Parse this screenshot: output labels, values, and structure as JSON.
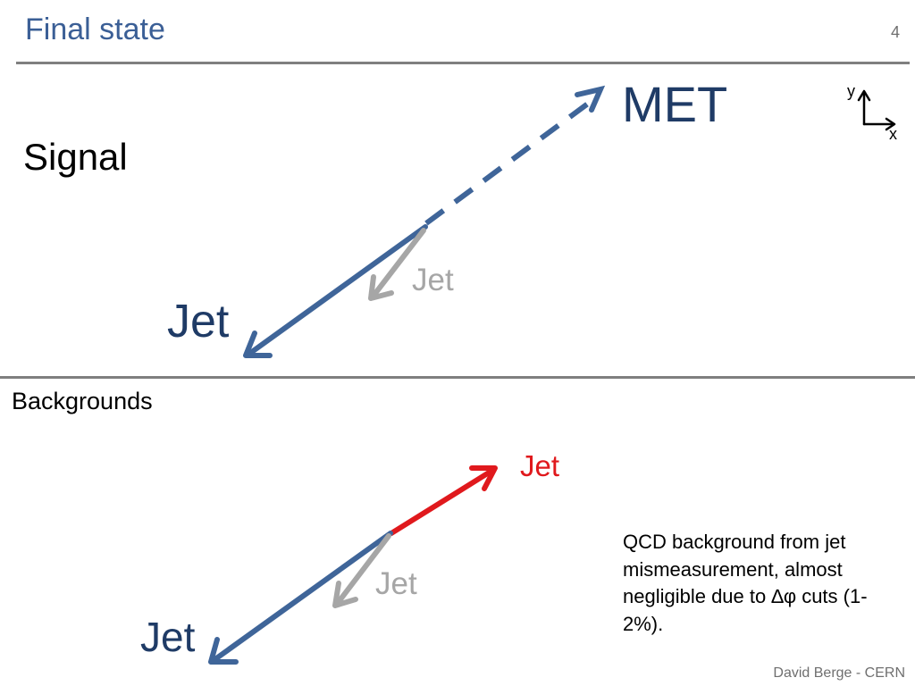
{
  "header": {
    "title": "Final state",
    "page_number": "4"
  },
  "signal": {
    "section_label": "Signal",
    "met_label": "MET",
    "jet_label": "Jet",
    "soft_jet_label": "Jet"
  },
  "axes": {
    "y_label": "y",
    "x_label": "x"
  },
  "backgrounds": {
    "section_label": "Backgrounds",
    "jet_label": "Jet",
    "soft_jet_label": "Jet",
    "mismeasured_jet_label": "Jet",
    "note": "QCD background from jet mismeasurement, almost negligible due to ∆φ cuts (1-2%)."
  },
  "footer": {
    "text": "David Berge - CERN"
  },
  "colors": {
    "title": "#3b5f96",
    "jet_arrow": "#3f6599",
    "soft_jet": "#a6a6a6",
    "mismeasured": "#e0191d"
  }
}
